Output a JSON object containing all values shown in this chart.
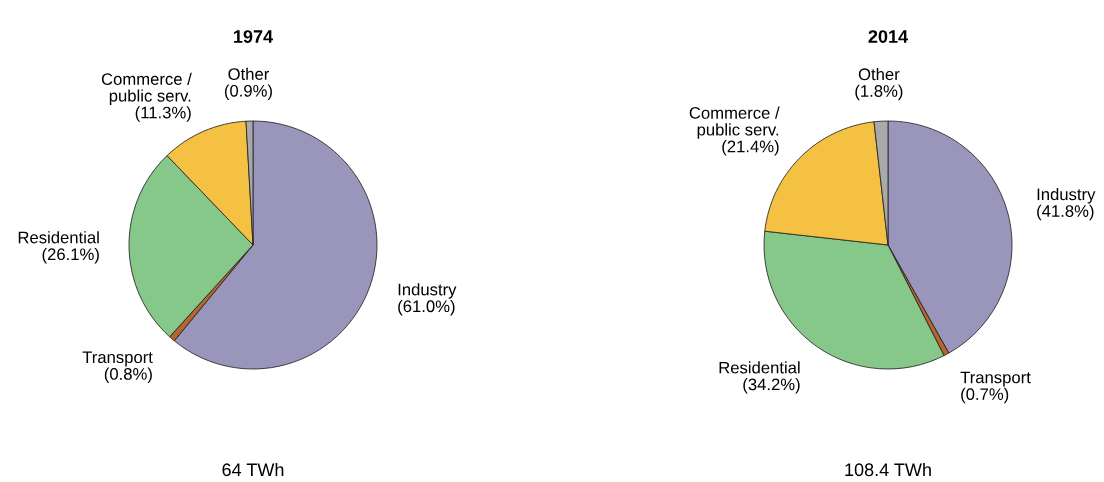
{
  "chart_data": [
    {
      "type": "pie",
      "title": "1974",
      "categories": [
        "Industry",
        "Transport",
        "Residential",
        "Commerce /\npublic serv.",
        "Other"
      ],
      "values": [
        61.0,
        0.8,
        26.1,
        11.3,
        0.9
      ],
      "value_labels": [
        "(61.0%)",
        "(0.8%)",
        "(26.1%)",
        "(11.3%)",
        "(0.9%)"
      ],
      "colors": [
        "#9a95bb",
        "#b5652e",
        "#86c78a",
        "#f5c143",
        "#a9a9a9"
      ],
      "legend": false,
      "annotations": [
        "64 TWh"
      ]
    },
    {
      "type": "pie",
      "title": "2014",
      "categories": [
        "Industry",
        "Transport",
        "Residential",
        "Commerce /\npublic serv.",
        "Other"
      ],
      "values": [
        41.8,
        0.7,
        34.2,
        21.4,
        1.8
      ],
      "value_labels": [
        "(41.8%)",
        "(0.7%)",
        "(34.2%)",
        "(21.4%)",
        "(1.8%)"
      ],
      "colors": [
        "#9a95bb",
        "#b5652e",
        "#86c78a",
        "#f5c143",
        "#a9a9a9"
      ],
      "legend": false,
      "annotations": [
        "108.4 TWh"
      ]
    }
  ]
}
